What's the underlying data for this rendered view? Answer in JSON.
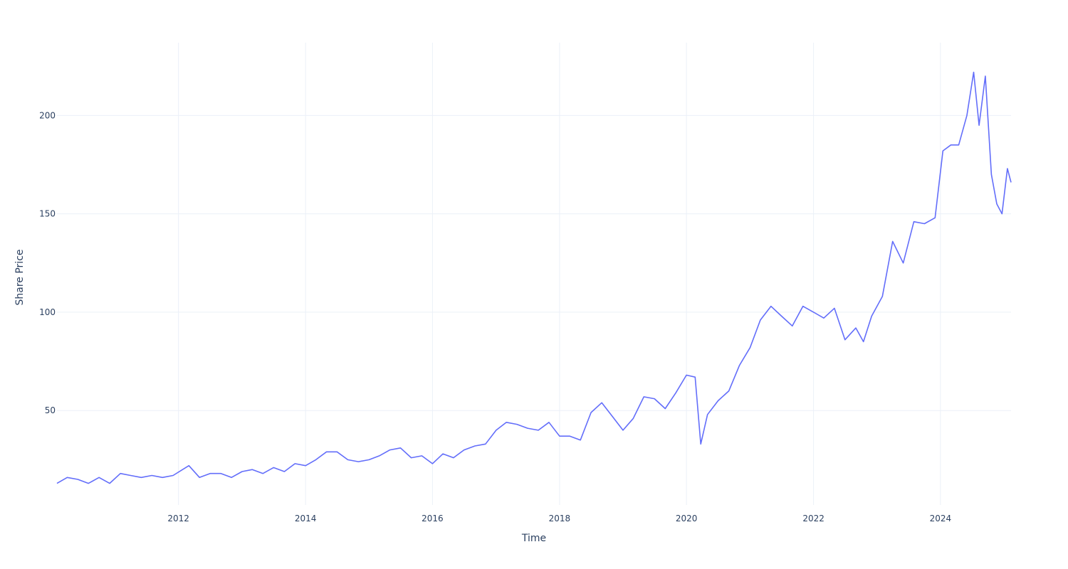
{
  "chart_data": {
    "type": "line",
    "title": "",
    "xlabel": "Time",
    "ylabel": "Share Price",
    "xlim": [
      "2010-02-01",
      "2025-02-10"
    ],
    "ylim": [
      2,
      237
    ],
    "x_ticks": [
      "2012",
      "2014",
      "2016",
      "2018",
      "2020",
      "2022",
      "2024"
    ],
    "y_ticks": [
      50,
      100,
      150,
      200
    ],
    "grid": true,
    "legend": "none",
    "line_color": "#636efa",
    "series": [
      {
        "x": [
          "2010-02-01",
          "2010-04-01",
          "2010-06-01",
          "2010-08-01",
          "2010-10-01",
          "2010-12-01",
          "2011-02-01",
          "2011-04-01",
          "2011-06-01",
          "2011-08-01",
          "2011-10-01",
          "2011-12-01",
          "2012-03-01",
          "2012-05-01",
          "2012-07-01",
          "2012-09-01",
          "2012-11-01",
          "2013-01-01",
          "2013-03-01",
          "2013-05-01",
          "2013-07-01",
          "2013-09-01",
          "2013-11-01",
          "2014-01-01",
          "2014-03-01",
          "2014-05-01",
          "2014-07-01",
          "2014-09-01",
          "2014-11-01",
          "2015-01-01",
          "2015-03-01",
          "2015-05-01",
          "2015-07-01",
          "2015-09-01",
          "2015-11-01",
          "2016-01-01",
          "2016-03-01",
          "2016-05-01",
          "2016-07-01",
          "2016-09-01",
          "2016-11-01",
          "2017-01-01",
          "2017-03-01",
          "2017-05-01",
          "2017-07-01",
          "2017-09-01",
          "2017-11-01",
          "2018-01-01",
          "2018-03-01",
          "2018-05-01",
          "2018-07-01",
          "2018-09-01",
          "2018-11-01",
          "2019-01-01",
          "2019-03-01",
          "2019-05-01",
          "2019-07-01",
          "2019-09-01",
          "2019-11-01",
          "2020-01-01",
          "2020-02-20",
          "2020-03-23",
          "2020-05-01",
          "2020-07-01",
          "2020-09-01",
          "2020-11-01",
          "2021-01-01",
          "2021-03-01",
          "2021-05-01",
          "2021-07-01",
          "2021-09-01",
          "2021-11-01",
          "2022-01-01",
          "2022-03-01",
          "2022-05-01",
          "2022-07-01",
          "2022-09-01",
          "2022-10-15",
          "2022-12-01",
          "2023-02-01",
          "2023-04-01",
          "2023-06-01",
          "2023-08-01",
          "2023-10-01",
          "2023-12-01",
          "2024-01-15",
          "2024-03-01",
          "2024-04-15",
          "2024-06-01",
          "2024-07-10",
          "2024-08-10",
          "2024-09-15",
          "2024-10-20",
          "2024-11-20",
          "2024-12-20",
          "2025-01-20",
          "2025-02-10"
        ],
        "y": [
          13,
          16,
          15,
          13,
          16,
          13,
          18,
          17,
          16,
          17,
          16,
          17,
          22,
          16,
          18,
          18,
          16,
          19,
          20,
          18,
          21,
          19,
          23,
          22,
          25,
          29,
          29,
          25,
          24,
          25,
          27,
          30,
          31,
          26,
          27,
          23,
          28,
          26,
          30,
          32,
          33,
          40,
          44,
          43,
          41,
          40,
          44,
          37,
          37,
          35,
          49,
          54,
          47,
          40,
          46,
          57,
          56,
          51,
          59,
          68,
          67,
          33,
          48,
          55,
          60,
          73,
          82,
          96,
          103,
          98,
          93,
          103,
          100,
          97,
          102,
          86,
          92,
          85,
          98,
          108,
          136,
          125,
          146,
          145,
          148,
          182,
          185,
          185,
          200,
          222,
          195,
          220,
          170,
          155,
          150,
          173,
          166
        ]
      }
    ]
  }
}
